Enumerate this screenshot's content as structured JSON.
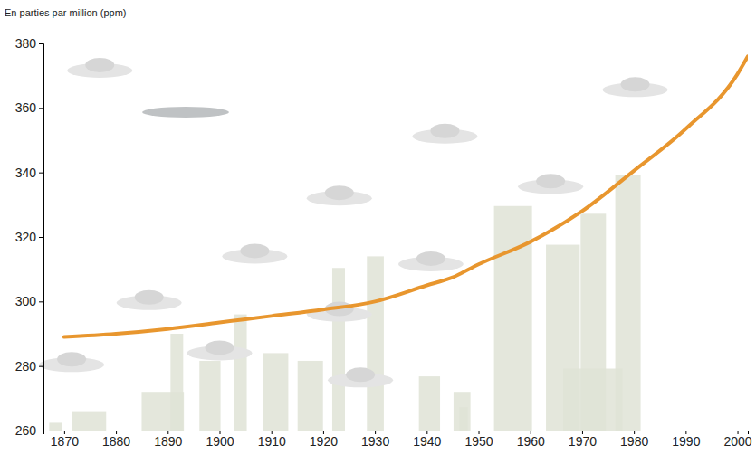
{
  "chart_data": {
    "type": "line",
    "y_label": "En parties par million (ppm)",
    "x": [
      1870,
      1880,
      1890,
      1900,
      1910,
      1920,
      1930,
      1940,
      1945,
      1950,
      1960,
      1970,
      1980,
      1990,
      2000,
      2002
    ],
    "values": [
      289,
      290,
      291.5,
      293.5,
      295.5,
      297.5,
      300,
      305,
      307.5,
      311.5,
      318.5,
      328,
      340.5,
      353.5,
      370.5,
      376
    ],
    "color": "#e8962e",
    "xlim": [
      1866,
      2002
    ],
    "xticks": [
      1870,
      1880,
      1890,
      1900,
      1910,
      1920,
      1930,
      1940,
      1950,
      1960,
      1970,
      1980,
      1990,
      2000
    ],
    "ylim": [
      260,
      380
    ],
    "yticks": [
      260,
      280,
      300,
      320,
      340,
      360,
      380
    ],
    "grid": false
  }
}
